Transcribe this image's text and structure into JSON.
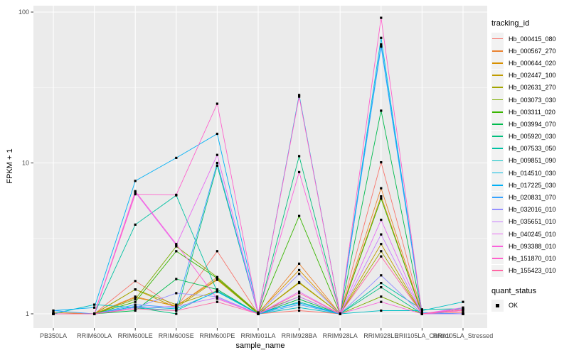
{
  "figure": {
    "panel_bg": "#EBEBEB",
    "grid_major": "#FFFFFF",
    "grid_minor": "#FFFFFF",
    "tick_color": "#333333",
    "tick_label_color": "#4D4D4D",
    "point_color": "#000000"
  },
  "legend": {
    "color_title": "tracking_id",
    "shape_title": "quant_status",
    "shape_items": [
      {
        "label": "OK"
      }
    ]
  },
  "chart_data": {
    "type": "line",
    "title": "",
    "xlabel": "sample_name",
    "ylabel": "FPKM + 1",
    "y_scale": "log10",
    "ylim": [
      0.81,
      110
    ],
    "y_ticks": [
      1,
      10,
      100
    ],
    "y_minor_ticks": [
      3.162,
      31.62
    ],
    "grid": true,
    "legend_position": "right",
    "point_shape": "filled-square",
    "quant_status": "OK",
    "categories": [
      "PB350LA",
      "RRIM600LA",
      "RRIM600LE",
      "RRIM600SE",
      "RRIM600PE",
      "RRIM901LA",
      "RRIM928BA",
      "RRIM928LA",
      "RRIM928LE",
      "RRII105LA_Control",
      "RRII105LA_Stressed"
    ],
    "series": [
      {
        "name": "Hb_000415_080",
        "color": "#F8766D",
        "values": [
          1.0,
          1.0,
          1.65,
          1.1,
          2.6,
          1.0,
          1.05,
          1.0,
          10.1,
          1.0,
          1.02
        ]
      },
      {
        "name": "Hb_000567_270",
        "color": "#EA8331",
        "values": [
          1.0,
          1.0,
          1.3,
          1.12,
          1.75,
          1.0,
          2.15,
          1.0,
          6.8,
          1.0,
          1.0
        ]
      },
      {
        "name": "Hb_000644_020",
        "color": "#D89000",
        "values": [
          1.02,
          1.0,
          1.28,
          1.13,
          1.7,
          1.02,
          1.95,
          1.0,
          6.0,
          1.0,
          1.05
        ]
      },
      {
        "name": "Hb_002447_100",
        "color": "#C09B00",
        "values": [
          1.0,
          1.0,
          1.45,
          1.1,
          1.68,
          1.0,
          1.6,
          1.0,
          2.9,
          1.0,
          1.08
        ]
      },
      {
        "name": "Hb_002631_270",
        "color": "#A3A500",
        "values": [
          1.0,
          1.0,
          1.45,
          1.15,
          1.42,
          1.0,
          1.62,
          1.0,
          2.6,
          1.0,
          1.0
        ]
      },
      {
        "name": "Hb_003073_030",
        "color": "#7CAE00",
        "values": [
          1.0,
          1.0,
          1.25,
          2.8,
          1.75,
          1.02,
          1.3,
          1.0,
          1.3,
          1.0,
          1.0
        ]
      },
      {
        "name": "Hb_003311_020",
        "color": "#39B600",
        "values": [
          1.0,
          1.0,
          1.2,
          2.6,
          1.72,
          1.0,
          4.45,
          1.0,
          5.8,
          1.0,
          1.0
        ]
      },
      {
        "name": "Hb_003994_070",
        "color": "#00BB4E",
        "values": [
          1.0,
          1.0,
          1.05,
          1.7,
          1.45,
          1.0,
          1.25,
          1.0,
          22.2,
          1.0,
          1.0
        ]
      },
      {
        "name": "Hb_005920_030",
        "color": "#00BF7D",
        "values": [
          1.0,
          1.0,
          1.1,
          1.0,
          9.6,
          1.0,
          11.1,
          1.0,
          1.5,
          1.0,
          1.08
        ]
      },
      {
        "name": "Hb_007533_050",
        "color": "#00C1A3",
        "values": [
          1.0,
          1.0,
          3.9,
          6.1,
          1.4,
          1.0,
          1.2,
          1.0,
          1.6,
          1.07,
          1.08
        ]
      },
      {
        "name": "Hb_009851_090",
        "color": "#00BFC4",
        "values": [
          1.0,
          1.15,
          1.1,
          1.05,
          1.42,
          1.0,
          1.1,
          1.0,
          1.05,
          1.05,
          1.2
        ]
      },
      {
        "name": "Hb_014510_030",
        "color": "#00BAE0",
        "values": [
          1.0,
          1.0,
          1.12,
          1.08,
          1.4,
          1.0,
          28.2,
          1.0,
          67.5,
          1.0,
          1.0
        ]
      },
      {
        "name": "Hb_017225_030",
        "color": "#00B0F6",
        "values": [
          1.05,
          1.1,
          7.6,
          10.8,
          15.6,
          1.02,
          1.18,
          1.0,
          61.0,
          1.02,
          1.0
        ]
      },
      {
        "name": "Hb_020831_070",
        "color": "#35A2FF",
        "values": [
          1.05,
          1.0,
          1.15,
          1.1,
          10.0,
          1.0,
          1.15,
          1.0,
          59.0,
          1.0,
          1.0
        ]
      },
      {
        "name": "Hb_032016_010",
        "color": "#9590FF",
        "values": [
          1.0,
          1.0,
          1.1,
          1.37,
          1.3,
          1.0,
          1.84,
          1.0,
          1.8,
          1.0,
          1.0
        ]
      },
      {
        "name": "Hb_035651_010",
        "color": "#C77CFF",
        "values": [
          1.0,
          1.0,
          1.1,
          1.12,
          1.28,
          1.0,
          1.3,
          1.0,
          3.36,
          1.0,
          1.0
        ]
      },
      {
        "name": "Hb_040245_010",
        "color": "#E76BF3",
        "values": [
          1.0,
          1.0,
          6.4,
          2.85,
          11.3,
          1.0,
          1.4,
          1.0,
          4.2,
          1.0,
          1.1
        ]
      },
      {
        "name": "Hb_093388_010",
        "color": "#FA62DB",
        "values": [
          1.0,
          1.0,
          6.5,
          2.9,
          1.26,
          1.0,
          8.7,
          1.0,
          1.2,
          1.0,
          1.08
        ]
      },
      {
        "name": "Hb_151870_010",
        "color": "#FF61CC",
        "values": [
          1.0,
          1.0,
          6.2,
          6.15,
          24.7,
          1.0,
          27.5,
          1.0,
          91.6,
          1.0,
          1.05
        ]
      },
      {
        "name": "Hb_155423_010",
        "color": "#FF67A4",
        "values": [
          1.0,
          1.0,
          1.08,
          1.05,
          1.2,
          1.0,
          1.37,
          1.0,
          2.4,
          1.0,
          1.06
        ]
      }
    ]
  }
}
